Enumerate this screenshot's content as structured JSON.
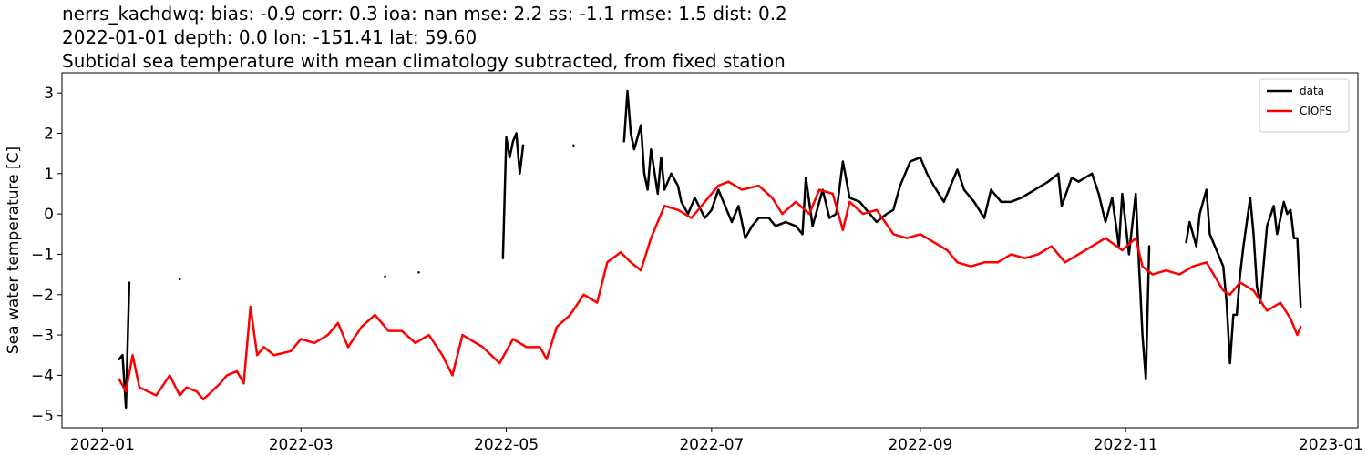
{
  "chart_data": {
    "type": "line",
    "title": [
      "nerrs_kachdwq: bias: -0.9  corr: 0.3  ioa: nan  mse: 2.2  ss: -1.1  rmse: 1.5  dist: 0.2",
      "2022-01-01 depth: 0.0 lon: -151.41 lat: 59.60",
      "Subtidal sea temperature with mean climatology subtracted, from fixed station"
    ],
    "y_label": "Sea water temperature [C]",
    "xlim": [
      -12,
      373
    ],
    "xticks": [
      {
        "value": 0,
        "label": "2022-01"
      },
      {
        "value": 59,
        "label": "2022-03"
      },
      {
        "value": 120,
        "label": "2022-05"
      },
      {
        "value": 181,
        "label": "2022-07"
      },
      {
        "value": 243,
        "label": "2022-09"
      },
      {
        "value": 304,
        "label": "2022-11"
      },
      {
        "value": 365,
        "label": "2023-01"
      }
    ],
    "ylim": [
      -5.3,
      3.5
    ],
    "yticks": [
      {
        "value": -5,
        "label": "−5"
      },
      {
        "value": -4,
        "label": "−4"
      },
      {
        "value": -3,
        "label": "−3"
      },
      {
        "value": -2,
        "label": "−2"
      },
      {
        "value": -1,
        "label": "−1"
      },
      0,
      1,
      2,
      3
    ],
    "legend": "upper right",
    "series": [
      {
        "name": "data",
        "color": "#000000",
        "x": [
          5,
          6,
          7,
          8,
          null,
          23,
          null,
          84,
          null,
          94,
          null,
          119,
          120,
          121,
          122,
          123,
          124,
          125,
          null,
          140,
          null,
          155,
          156,
          157,
          158,
          160,
          161,
          162,
          163,
          165,
          166,
          167,
          169,
          171,
          172,
          174,
          176,
          179,
          181,
          183,
          185,
          187,
          189,
          191,
          193,
          195,
          198,
          200,
          203,
          206,
          208,
          209,
          211,
          214,
          216,
          218,
          220,
          222,
          225,
          228,
          230,
          233,
          235,
          237,
          240,
          243,
          245,
          247,
          250,
          252,
          254,
          256,
          259,
          262,
          264,
          267,
          270,
          273,
          277,
          281,
          284,
          285,
          288,
          290,
          294,
          296,
          298,
          300,
          302,
          303,
          305,
          307,
          308,
          309,
          310,
          311,
          null,
          322,
          323,
          325,
          326,
          328,
          329,
          330,
          333,
          334,
          335,
          336,
          337,
          338,
          339,
          341,
          342,
          343,
          344,
          346,
          348,
          349,
          351,
          352,
          353,
          354,
          355,
          356
        ],
        "values": [
          -3.6,
          -3.5,
          -4.8,
          -1.7,
          null,
          -1.62,
          null,
          -1.55,
          null,
          -1.45,
          null,
          -1.1,
          1.9,
          1.4,
          1.8,
          2.0,
          1.0,
          1.7,
          null,
          1.7,
          null,
          1.8,
          3.05,
          2.0,
          1.6,
          2.2,
          1.0,
          0.6,
          1.6,
          0.5,
          1.4,
          0.6,
          1.0,
          0.7,
          0.3,
          0.0,
          0.4,
          -0.1,
          0.1,
          0.6,
          0.2,
          -0.2,
          0.2,
          -0.6,
          -0.3,
          -0.1,
          -0.1,
          -0.3,
          -0.2,
          -0.3,
          -0.5,
          0.9,
          -0.3,
          0.6,
          -0.1,
          0.0,
          1.3,
          0.4,
          0.3,
          0.0,
          -0.2,
          0.0,
          0.1,
          0.7,
          1.3,
          1.4,
          1.0,
          0.7,
          0.3,
          0.7,
          1.1,
          0.6,
          0.3,
          -0.1,
          0.6,
          0.3,
          0.3,
          0.4,
          0.6,
          0.8,
          1.0,
          0.2,
          0.9,
          0.8,
          1.0,
          0.5,
          -0.2,
          0.4,
          -0.8,
          0.5,
          -1.0,
          0.5,
          -1.3,
          -3.0,
          -4.1,
          -0.8,
          null,
          -0.7,
          -0.2,
          -0.8,
          0.0,
          0.6,
          -0.5,
          -0.7,
          -1.3,
          -2.2,
          -3.7,
          -2.5,
          -2.5,
          -1.5,
          -0.8,
          0.4,
          -0.5,
          -1.8,
          -2.2,
          -0.3,
          0.2,
          -0.5,
          0.3,
          0.0,
          0.1,
          -0.6,
          -0.6,
          -2.3
        ]
      },
      {
        "name": "CIOFS",
        "color": "#ff0000",
        "x": [
          5,
          7,
          9,
          11,
          16,
          20,
          23,
          25,
          28,
          30,
          35,
          37,
          40,
          42,
          44,
          46,
          48,
          51,
          56,
          59,
          63,
          67,
          70,
          73,
          77,
          81,
          85,
          89,
          93,
          97,
          101,
          104,
          107,
          109,
          113,
          118,
          122,
          126,
          130,
          132,
          135,
          139,
          143,
          147,
          150,
          154,
          157,
          160,
          163,
          167,
          171,
          175,
          179,
          183,
          186,
          190,
          195,
          199,
          202,
          206,
          210,
          213,
          217,
          220,
          222,
          226,
          230,
          235,
          239,
          243,
          247,
          251,
          254,
          258,
          262,
          266,
          270,
          274,
          278,
          282,
          286,
          290,
          294,
          298,
          303,
          307,
          309,
          312,
          316,
          320,
          324,
          328,
          333,
          335,
          338,
          342,
          346,
          350,
          353,
          355,
          356
        ],
        "values": [
          -4.1,
          -4.4,
          -3.5,
          -4.3,
          -4.5,
          -4.0,
          -4.5,
          -4.3,
          -4.4,
          -4.6,
          -4.2,
          -4.0,
          -3.9,
          -4.2,
          -2.3,
          -3.5,
          -3.3,
          -3.5,
          -3.4,
          -3.1,
          -3.2,
          -3.0,
          -2.7,
          -3.3,
          -2.8,
          -2.5,
          -2.9,
          -2.9,
          -3.2,
          -3.0,
          -3.5,
          -4.0,
          -3.0,
          -3.1,
          -3.3,
          -3.7,
          -3.1,
          -3.3,
          -3.3,
          -3.6,
          -2.8,
          -2.5,
          -2.0,
          -2.2,
          -1.2,
          -0.95,
          -1.2,
          -1.4,
          -0.6,
          0.2,
          0.1,
          -0.1,
          0.3,
          0.7,
          0.8,
          0.6,
          0.7,
          0.4,
          0.0,
          0.3,
          0.0,
          0.6,
          0.5,
          -0.4,
          0.3,
          0.0,
          0.1,
          -0.5,
          -0.6,
          -0.5,
          -0.7,
          -0.9,
          -1.2,
          -1.3,
          -1.2,
          -1.2,
          -1.0,
          -1.1,
          -1.0,
          -0.8,
          -1.2,
          -1.0,
          -0.8,
          -0.6,
          -0.9,
          -0.6,
          -1.3,
          -1.5,
          -1.4,
          -1.5,
          -1.3,
          -1.2,
          -1.9,
          -2.0,
          -1.7,
          -1.9,
          -2.4,
          -2.2,
          -2.6,
          -3.0,
          -2.8
        ]
      }
    ]
  }
}
